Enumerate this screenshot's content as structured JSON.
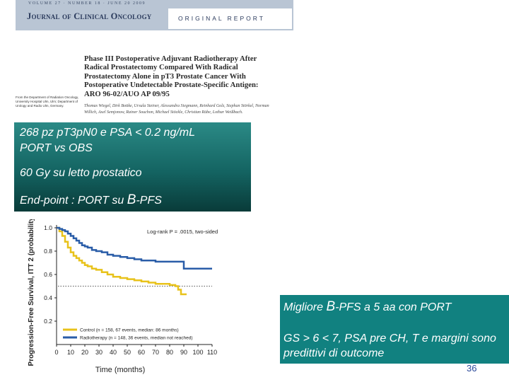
{
  "journal": {
    "meta": "VOLUME 27 · NUMBER 18 · JUNE 20 2009",
    "name": "Journal of Clinical Oncology",
    "report_type": "ORIGINAL REPORT"
  },
  "article": {
    "title": "Phase III Postoperative Adjuvant Radiotherapy After Radical Prostatectomy Compared With Radical Prostatectomy Alone in pT3 Prostate Cancer With Postoperative Undetectable Prostate-Specific Antigen: ARO 96-02/AUO AP 09/95",
    "authors": "Thomas Wiegel, Dirk Bottke, Ursula Steiner, Alessandra Siegmann, Reinhard Golz, Stephan Störkel, Norman Willich, Axel Semjonow, Rainer Souchon, Michael Stöckle, Christian Rübe, Lothar Weißbach.",
    "affiliations": "From the Department of Radiation Oncology, University Hospital Ulm, Ulm; Department of Urology and Radio Ulm, Germany."
  },
  "study_box": {
    "line1": "268 pz  pT3pN0  e PSA <  0.2 ng/mL",
    "line2": "PORT vs OBS",
    "line3": "60 Gy su  letto prostatico",
    "endpoint_prefix": "End-point : PORT su ",
    "endpoint_b": "B",
    "endpoint_suffix": "-PFS"
  },
  "conclusions": {
    "line1_prefix": "Migliore ",
    "line1_b": "B",
    "line1_suffix": "-PFS a 5 aa con PORT",
    "line2": "GS > 6 < 7, PSA pre CH, T e margini sono predittivi di outcome"
  },
  "page_number": "36",
  "chart_data": {
    "type": "line",
    "ylabel": "Progression-Free Survival, ITT 2 (probability)",
    "xlabel": "Time (months)",
    "xlim": [
      0,
      110
    ],
    "ylim": [
      0,
      1.0
    ],
    "xticks": [
      0,
      10,
      20,
      30,
      40,
      50,
      60,
      70,
      80,
      90,
      100,
      110
    ],
    "yticks": [
      0.2,
      0.4,
      0.6,
      0.8,
      1.0
    ],
    "annotation": "Log-rank P = .0015, two-sided",
    "reference_line_y": 0.5,
    "series": [
      {
        "name": "Control (n = 158, 67 events, median: 86 months)",
        "color": "#e8c21a",
        "x": [
          0,
          2,
          4,
          6,
          8,
          10,
          12,
          14,
          16,
          18,
          20,
          22,
          25,
          28,
          32,
          36,
          40,
          45,
          50,
          55,
          60,
          65,
          70,
          75,
          80,
          84,
          86,
          88,
          92
        ],
        "y": [
          1.0,
          0.97,
          0.93,
          0.88,
          0.83,
          0.79,
          0.76,
          0.74,
          0.72,
          0.7,
          0.68,
          0.67,
          0.65,
          0.64,
          0.62,
          0.6,
          0.58,
          0.57,
          0.56,
          0.55,
          0.54,
          0.53,
          0.52,
          0.52,
          0.51,
          0.5,
          0.47,
          0.43,
          0.43
        ]
      },
      {
        "name": "Radiotherapy (n = 148, 36 events, median not reached)",
        "color": "#2a5da8",
        "x": [
          0,
          2,
          4,
          6,
          8,
          10,
          12,
          14,
          16,
          18,
          20,
          22,
          25,
          28,
          32,
          36,
          40,
          45,
          50,
          55,
          60,
          65,
          70,
          75,
          80,
          85,
          90,
          95,
          100,
          105,
          110
        ],
        "y": [
          1.0,
          0.99,
          0.98,
          0.97,
          0.95,
          0.93,
          0.91,
          0.89,
          0.87,
          0.85,
          0.84,
          0.83,
          0.81,
          0.8,
          0.79,
          0.77,
          0.76,
          0.75,
          0.74,
          0.73,
          0.72,
          0.72,
          0.71,
          0.71,
          0.71,
          0.71,
          0.65,
          0.65,
          0.65,
          0.65,
          0.65
        ]
      }
    ]
  }
}
